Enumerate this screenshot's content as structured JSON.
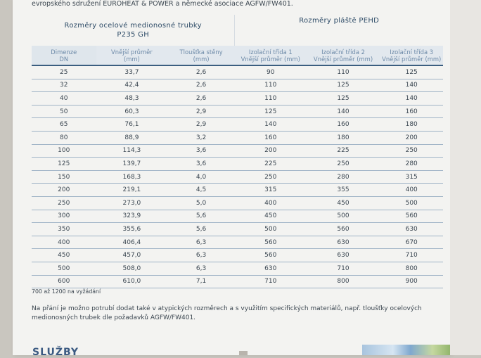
{
  "intro_text": "evropského sdružení EUROHEAT & POWER a německé asociace AGFW/FW401.",
  "table": {
    "group_steel": "Rozměry ocelové medionosné trubky\nP235 GH",
    "group_pehd": "Rozměry pláště PEHD",
    "columns": [
      "Dimenze\nDN",
      "Vnější průměr\n(mm)",
      "Tloušťka stěny\n(mm)",
      "Izolační třída 1\nVnější průměr (mm)",
      "Izolační třída 2\nVnější průměr (mm)",
      "Izolační třída 3\nVnější průměr (mm)"
    ],
    "rows": [
      [
        "25",
        "33,7",
        "2,6",
        "90",
        "110",
        "125"
      ],
      [
        "32",
        "42,4",
        "2,6",
        "110",
        "125",
        "140"
      ],
      [
        "40",
        "48,3",
        "2,6",
        "110",
        "125",
        "140"
      ],
      [
        "50",
        "60,3",
        "2,9",
        "125",
        "140",
        "160"
      ],
      [
        "65",
        "76,1",
        "2,9",
        "140",
        "160",
        "180"
      ],
      [
        "80",
        "88,9",
        "3,2",
        "160",
        "180",
        "200"
      ],
      [
        "100",
        "114,3",
        "3,6",
        "200",
        "225",
        "250"
      ],
      [
        "125",
        "139,7",
        "3,6",
        "225",
        "250",
        "280"
      ],
      [
        "150",
        "168,3",
        "4,0",
        "250",
        "280",
        "315"
      ],
      [
        "200",
        "219,1",
        "4,5",
        "315",
        "355",
        "400"
      ],
      [
        "250",
        "273,0",
        "5,0",
        "400",
        "450",
        "500"
      ],
      [
        "300",
        "323,9",
        "5,6",
        "450",
        "500",
        "560"
      ],
      [
        "350",
        "355,6",
        "5,6",
        "500",
        "560",
        "630"
      ],
      [
        "400",
        "406,4",
        "6,3",
        "560",
        "630",
        "670"
      ],
      [
        "450",
        "457,0",
        "6,3",
        "560",
        "630",
        "710"
      ],
      [
        "500",
        "508,0",
        "6,3",
        "630",
        "710",
        "800"
      ],
      [
        "600",
        "610,0",
        "7,1",
        "710",
        "800",
        "900"
      ]
    ]
  },
  "note": "700 až 1200 na vyžádání",
  "paragraph": "Na přání je možno potrubí dodat také v atypických rozměrech a s využitím specifických materiálů, např. tloušťky ocelových medionosných trubek dle požadavků AGFW/FW401.",
  "section_heading": "SLUŽBY",
  "colors": {
    "header_text": "#2c4a66",
    "subheader_text": "#6d8aa8",
    "rule": "#3b5e80",
    "row_line": "#9fb3c6"
  }
}
